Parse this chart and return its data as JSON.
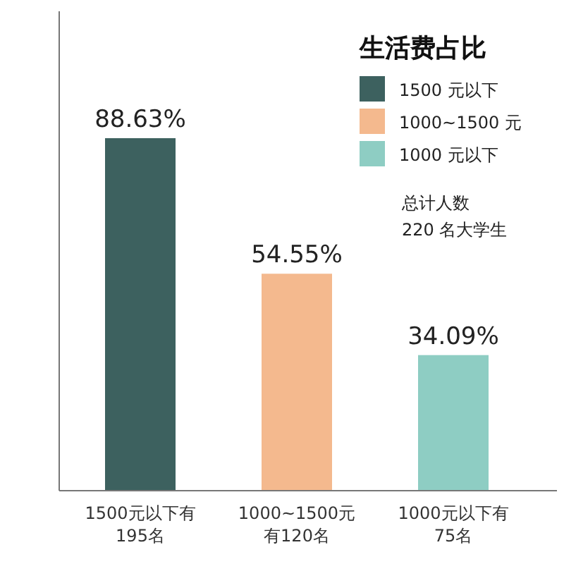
{
  "chart_data": {
    "type": "bar",
    "categories": [
      "1500元以下有195名",
      "1000~1500元有120名",
      "1000元以下有75名"
    ],
    "series": [
      {
        "name": "1500 元以下",
        "color": "#3d615f",
        "values": [
          88.63,
          null,
          null
        ],
        "value_labels": [
          "88.63%",
          null,
          null
        ]
      },
      {
        "name": "1000~1500 元",
        "color": "#f4b98e",
        "values": [
          null,
          54.55,
          null
        ],
        "value_labels": [
          null,
          "54.55%",
          null
        ]
      },
      {
        "name": "1000 元以下",
        "color": "#8ecdc3",
        "values": [
          null,
          null,
          34.09
        ],
        "value_labels": [
          null,
          null,
          "34.09%"
        ]
      }
    ],
    "legend_title": "生活费占比",
    "legend": "top right",
    "annotations": [
      "总计人数\n220 名大学生"
    ]
  }
}
